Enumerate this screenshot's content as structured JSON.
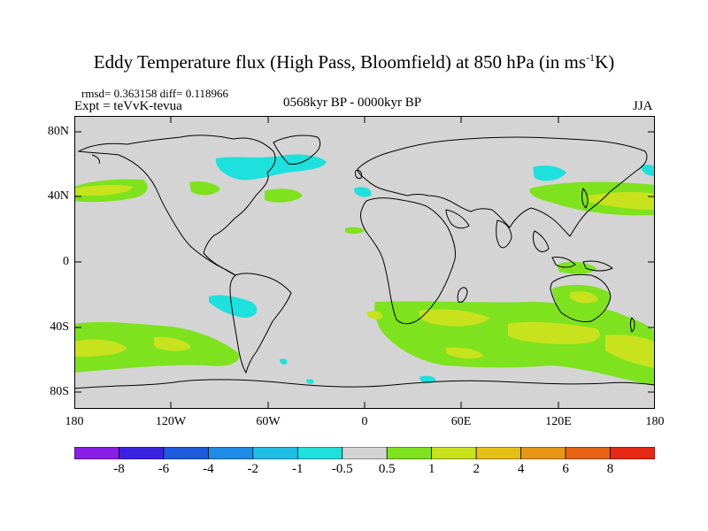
{
  "title": {
    "main": "Eddy Temperature flux (High Pass, Bloomfield) at 850 hPa (in ms",
    "sup": "-1",
    "end": "K)"
  },
  "stats": "rmsd= 0.363158 diff= 0.118966",
  "expt": "Expt = teVvK-tevua",
  "period": "0568kyr BP - 0000kyr BP",
  "season": "JJA",
  "lat_labels": [
    "80N",
    "40N",
    "0",
    "40S",
    "80S"
  ],
  "lon_labels": [
    "180",
    "120W",
    "60W",
    "0",
    "60E",
    "120E",
    "180"
  ],
  "colorbar": {
    "labels": [
      "-8",
      "-6",
      "-4",
      "-2",
      "-1",
      "-0.5",
      "0.5",
      "1",
      "2",
      "4",
      "6",
      "8"
    ],
    "colors": [
      "#8a1ee6",
      "#3c22e0",
      "#1e5adc",
      "#1e8ce6",
      "#1ebee6",
      "#1ee0dc",
      "#d4d4d4",
      "#7ee21e",
      "#c8e21e",
      "#e6be14",
      "#e69614",
      "#e66414",
      "#e62814"
    ]
  },
  "map": {
    "background_color": "#d4d4d4",
    "coast_color": "#000000"
  }
}
